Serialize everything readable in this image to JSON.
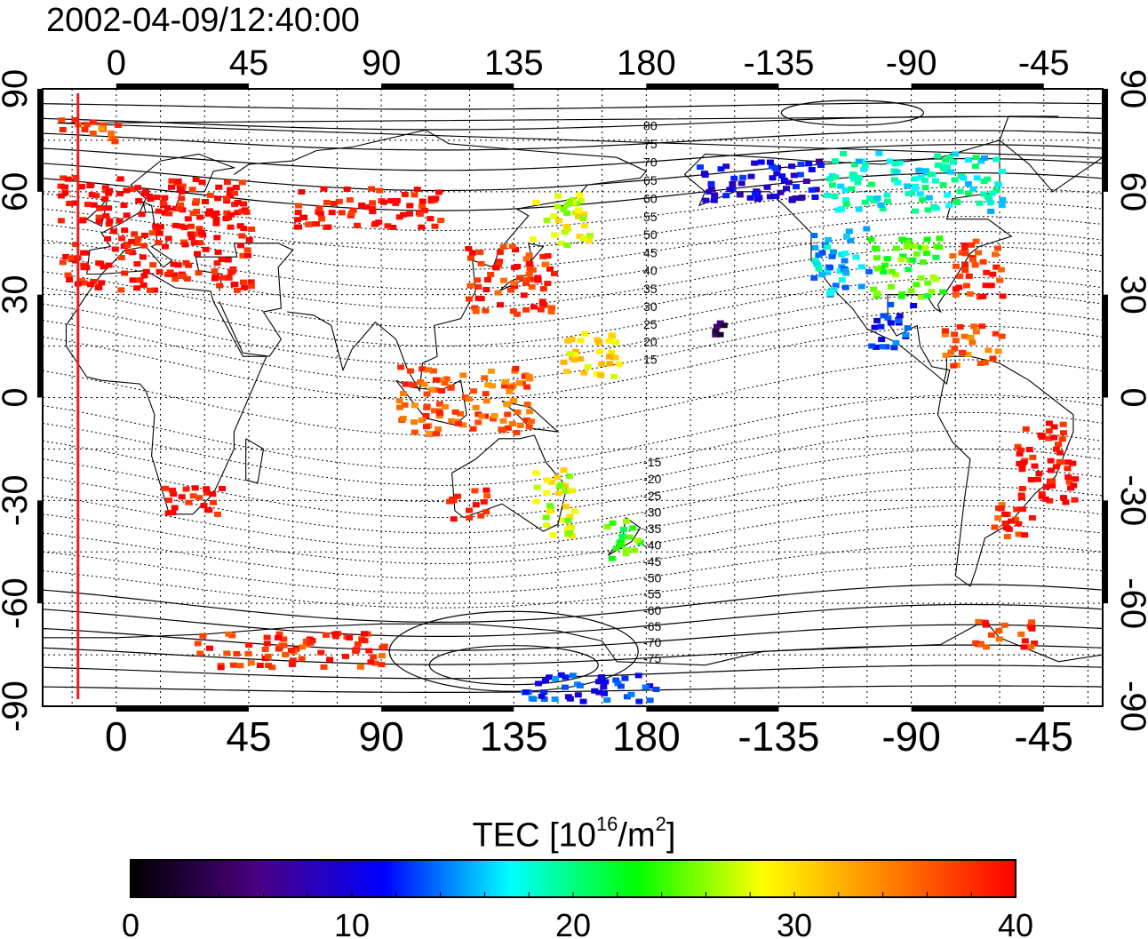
{
  "header": {
    "title": "2002-04-09/12:40:00"
  },
  "map": {
    "projection": "equirectangular",
    "lon_start": -25,
    "lon_end": 335,
    "lat_min": -90,
    "lat_max": 90,
    "lon_ticks": [
      {
        "lon": 0,
        "label": "0"
      },
      {
        "lon": 45,
        "label": "45"
      },
      {
        "lon": 90,
        "label": "90"
      },
      {
        "lon": 135,
        "label": "135"
      },
      {
        "lon": 180,
        "label": "180"
      },
      {
        "lon": 225,
        "label": "-135"
      },
      {
        "lon": 270,
        "label": "-90"
      },
      {
        "lon": 315,
        "label": "-45"
      }
    ],
    "lat_ticks": [
      {
        "lat": 90,
        "label": "90"
      },
      {
        "lat": 60,
        "label": "60"
      },
      {
        "lat": 30,
        "label": "30"
      },
      {
        "lat": 0,
        "label": "0"
      },
      {
        "lat": -30,
        "label": "-30"
      },
      {
        "lat": -60,
        "label": "-60"
      },
      {
        "lat": -90,
        "label": "-90"
      }
    ],
    "minor_grid_deg": 15,
    "terminator_lon": -13,
    "terminator_color": "#ee1c1c",
    "magnetic_latitude_labels": [
      "80",
      "75",
      "70",
      "65",
      "60",
      "55",
      "50",
      "45",
      "40",
      "35",
      "30",
      "25",
      "20",
      "15",
      "-15",
      "-20",
      "-25",
      "-30",
      "-35",
      "-40",
      "-45",
      "-50",
      "-55",
      "-60",
      "-65",
      "-70",
      "-75"
    ],
    "tec_regions": [
      {
        "name": "europe",
        "lon": [
          -20,
          45
        ],
        "lat": [
          32,
          65
        ],
        "tec": 40
      },
      {
        "name": "greenland-west",
        "lon": [
          -20,
          0
        ],
        "lat": [
          75,
          82
        ],
        "tec": 36
      },
      {
        "name": "russia",
        "lon": [
          60,
          110
        ],
        "lat": [
          50,
          62
        ],
        "tec": 40
      },
      {
        "name": "east-asia",
        "lon": [
          118,
          148
        ],
        "lat": [
          25,
          45
        ],
        "tec": 38
      },
      {
        "name": "japan-kamchatka",
        "lon": [
          140,
          160
        ],
        "lat": [
          45,
          60
        ],
        "tec": 28
      },
      {
        "name": "indonesia",
        "lon": [
          95,
          140
        ],
        "lat": [
          -10,
          10
        ],
        "tec": 36
      },
      {
        "name": "philippines",
        "lon": [
          150,
          170
        ],
        "lat": [
          5,
          20
        ],
        "tec": 30
      },
      {
        "name": "australia-west",
        "lon": [
          112,
          125
        ],
        "lat": [
          -35,
          -25
        ],
        "tec": 38
      },
      {
        "name": "australia-east",
        "lon": [
          140,
          155
        ],
        "lat": [
          -40,
          -20
        ],
        "tec": 28
      },
      {
        "name": "new-zealand",
        "lon": [
          165,
          178
        ],
        "lat": [
          -47,
          -35
        ],
        "tec": 24
      },
      {
        "name": "africa-south",
        "lon": [
          15,
          35
        ],
        "lat": [
          -35,
          -25
        ],
        "tec": 40
      },
      {
        "name": "alaska",
        "lon": [
          195,
          240
        ],
        "lat": [
          58,
          70
        ],
        "tec": 10
      },
      {
        "name": "canada",
        "lon": [
          240,
          300
        ],
        "lat": [
          55,
          72
        ],
        "tec": 18
      },
      {
        "name": "usa-west",
        "lon": [
          235,
          255
        ],
        "lat": [
          30,
          50
        ],
        "tec": 16
      },
      {
        "name": "usa-central",
        "lon": [
          255,
          280
        ],
        "lat": [
          30,
          48
        ],
        "tec": 24
      },
      {
        "name": "usa-east",
        "lon": [
          282,
          300
        ],
        "lat": [
          30,
          47
        ],
        "tec": 38
      },
      {
        "name": "mexico",
        "lon": [
          255,
          270
        ],
        "lat": [
          15,
          28
        ],
        "tec": 12
      },
      {
        "name": "caribbean",
        "lon": [
          280,
          300
        ],
        "lat": [
          10,
          22
        ],
        "tec": 36
      },
      {
        "name": "hawaii",
        "lon": [
          200,
          206
        ],
        "lat": [
          18,
          23
        ],
        "tec": 3
      },
      {
        "name": "south-america-east",
        "lon": [
          305,
          325
        ],
        "lat": [
          -30,
          -5
        ],
        "tec": 40
      },
      {
        "name": "south-america-south",
        "lon": [
          295,
          312
        ],
        "lat": [
          -40,
          -30
        ],
        "tec": 38
      },
      {
        "name": "antarctic-peninsula",
        "lon": [
          290,
          312
        ],
        "lat": [
          -72,
          -64
        ],
        "tec": 38
      },
      {
        "name": "antarctica-east",
        "lon": [
          25,
          90
        ],
        "lat": [
          -78,
          -68
        ],
        "tec": 38
      },
      {
        "name": "antarctica-ross",
        "lon": [
          135,
          185
        ],
        "lat": [
          -88,
          -80
        ],
        "tec": 12
      }
    ]
  },
  "colorbar": {
    "title_main": "TEC  [10",
    "title_exp1": "16",
    "title_unit": "/m",
    "title_exp2": "2",
    "title_end": "]",
    "min": 0,
    "max": 40,
    "ticks": [
      {
        "value": 0,
        "label": "0"
      },
      {
        "value": 10,
        "label": "10"
      },
      {
        "value": 20,
        "label": "20"
      },
      {
        "value": 30,
        "label": "30"
      },
      {
        "value": 40,
        "label": "40"
      }
    ],
    "stops": [
      "#000000",
      "#4b0082",
      "#0000ff",
      "#00ffff",
      "#00ff00",
      "#ffff00",
      "#ff8000",
      "#ff0000"
    ]
  }
}
